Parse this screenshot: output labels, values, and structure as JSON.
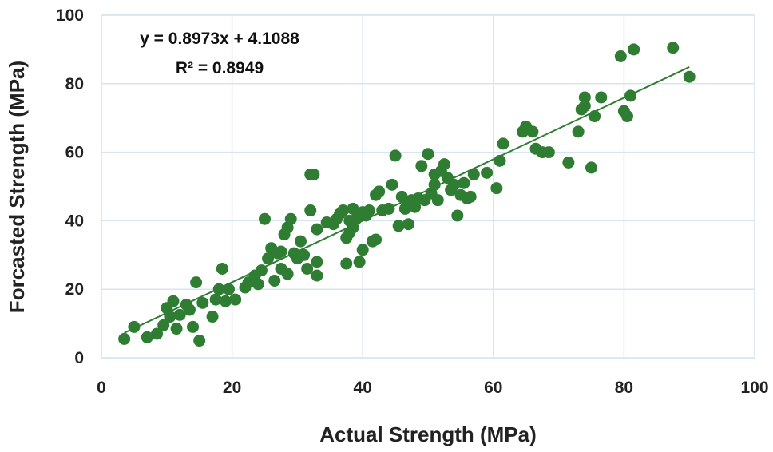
{
  "chart_data": {
    "type": "scatter",
    "xlabel": "Actual Strength (MPa)",
    "ylabel": "Forcasted Strength (MPa)",
    "xlim": [
      0,
      100
    ],
    "ylim": [
      0,
      100
    ],
    "x_ticks": [
      "0",
      "20",
      "40",
      "60",
      "80",
      "100"
    ],
    "y_ticks": [
      "0",
      "20",
      "40",
      "60",
      "80",
      "100"
    ],
    "grid": true,
    "marker_color": "#2e7d32",
    "trendline": {
      "slope": 0.8973,
      "intercept": 4.1088,
      "x_range": [
        3.5,
        90
      ],
      "color": "#2e7d32",
      "equation_label": "y = 0.8973x + 4.1088",
      "r2_label": "R² = 0.8949"
    },
    "points": [
      [
        3.5,
        5.5
      ],
      [
        5,
        9
      ],
      [
        7,
        6
      ],
      [
        8.5,
        7
      ],
      [
        9.5,
        9.5
      ],
      [
        10,
        14.5
      ],
      [
        10.5,
        12
      ],
      [
        11,
        16.5
      ],
      [
        11.5,
        8.5
      ],
      [
        12,
        12.5
      ],
      [
        13,
        15.5
      ],
      [
        13.5,
        14
      ],
      [
        14,
        9
      ],
      [
        14.5,
        22
      ],
      [
        15,
        5
      ],
      [
        15.5,
        16
      ],
      [
        17,
        12
      ],
      [
        17.5,
        17
      ],
      [
        18,
        20
      ],
      [
        18.5,
        26
      ],
      [
        19,
        16.5
      ],
      [
        19.5,
        20
      ],
      [
        20.5,
        17
      ],
      [
        22,
        20.5
      ],
      [
        22.5,
        22
      ],
      [
        23.5,
        24
      ],
      [
        24,
        21.5
      ],
      [
        24.5,
        25.5
      ],
      [
        25,
        40.5
      ],
      [
        25.5,
        29
      ],
      [
        26,
        32
      ],
      [
        26.5,
        22.5
      ],
      [
        27,
        30.5
      ],
      [
        27.5,
        31
      ],
      [
        27.5,
        26
      ],
      [
        28,
        36
      ],
      [
        28.5,
        38
      ],
      [
        28.5,
        24.5
      ],
      [
        29,
        40.5
      ],
      [
        29.5,
        30.5
      ],
      [
        30,
        29
      ],
      [
        30.5,
        34
      ],
      [
        31,
        30
      ],
      [
        31.5,
        26
      ],
      [
        32,
        53.5
      ],
      [
        32,
        43
      ],
      [
        32.5,
        53.5
      ],
      [
        33,
        37.5
      ],
      [
        33,
        28
      ],
      [
        33,
        24
      ],
      [
        34.5,
        39.5
      ],
      [
        35.5,
        39
      ],
      [
        36,
        40.5
      ],
      [
        36.5,
        42
      ],
      [
        37,
        43
      ],
      [
        37.5,
        27.5
      ],
      [
        37.5,
        35
      ],
      [
        38,
        36.5
      ],
      [
        38,
        40
      ],
      [
        38.5,
        43.5
      ],
      [
        38.5,
        38
      ],
      [
        39,
        40.5
      ],
      [
        39.5,
        28
      ],
      [
        40,
        31.5
      ],
      [
        40,
        42.5
      ],
      [
        40.5,
        41.5
      ],
      [
        41,
        43
      ],
      [
        41.5,
        34
      ],
      [
        42,
        47.5
      ],
      [
        42,
        34.5
      ],
      [
        42.5,
        48.5
      ],
      [
        43,
        43
      ],
      [
        44,
        43.5
      ],
      [
        44.5,
        50.5
      ],
      [
        45,
        59
      ],
      [
        45.5,
        38.5
      ],
      [
        46,
        47
      ],
      [
        46.5,
        43.5
      ],
      [
        47,
        45
      ],
      [
        47,
        39
      ],
      [
        47.5,
        46
      ],
      [
        48,
        44
      ],
      [
        48.5,
        46.5
      ],
      [
        49,
        56
      ],
      [
        49.5,
        46
      ],
      [
        50,
        59.5
      ],
      [
        50.5,
        48
      ],
      [
        51,
        50.5
      ],
      [
        51,
        53.5
      ],
      [
        51.5,
        46
      ],
      [
        52,
        54.5
      ],
      [
        52.5,
        56.5
      ],
      [
        53,
        52.5
      ],
      [
        53.5,
        49
      ],
      [
        54,
        50.5
      ],
      [
        54.5,
        41.5
      ],
      [
        55,
        47.5
      ],
      [
        55.5,
        51
      ],
      [
        56,
        46.5
      ],
      [
        56.5,
        47
      ],
      [
        57,
        53.5
      ],
      [
        59,
        54
      ],
      [
        60.5,
        49.5
      ],
      [
        61,
        57.5
      ],
      [
        61.5,
        62.5
      ],
      [
        64.5,
        66
      ],
      [
        65,
        67.5
      ],
      [
        66,
        66
      ],
      [
        66.5,
        61
      ],
      [
        67.5,
        60
      ],
      [
        68.5,
        60
      ],
      [
        71.5,
        57
      ],
      [
        73,
        66
      ],
      [
        73.5,
        72.5
      ],
      [
        74,
        76
      ],
      [
        74,
        73.5
      ],
      [
        75,
        55.5
      ],
      [
        75.5,
        70.5
      ],
      [
        76.5,
        76
      ],
      [
        79.5,
        88
      ],
      [
        80,
        72
      ],
      [
        80.5,
        70.5
      ],
      [
        81,
        76.5
      ],
      [
        81.5,
        90
      ],
      [
        87.5,
        90.5
      ],
      [
        90,
        82
      ]
    ]
  }
}
